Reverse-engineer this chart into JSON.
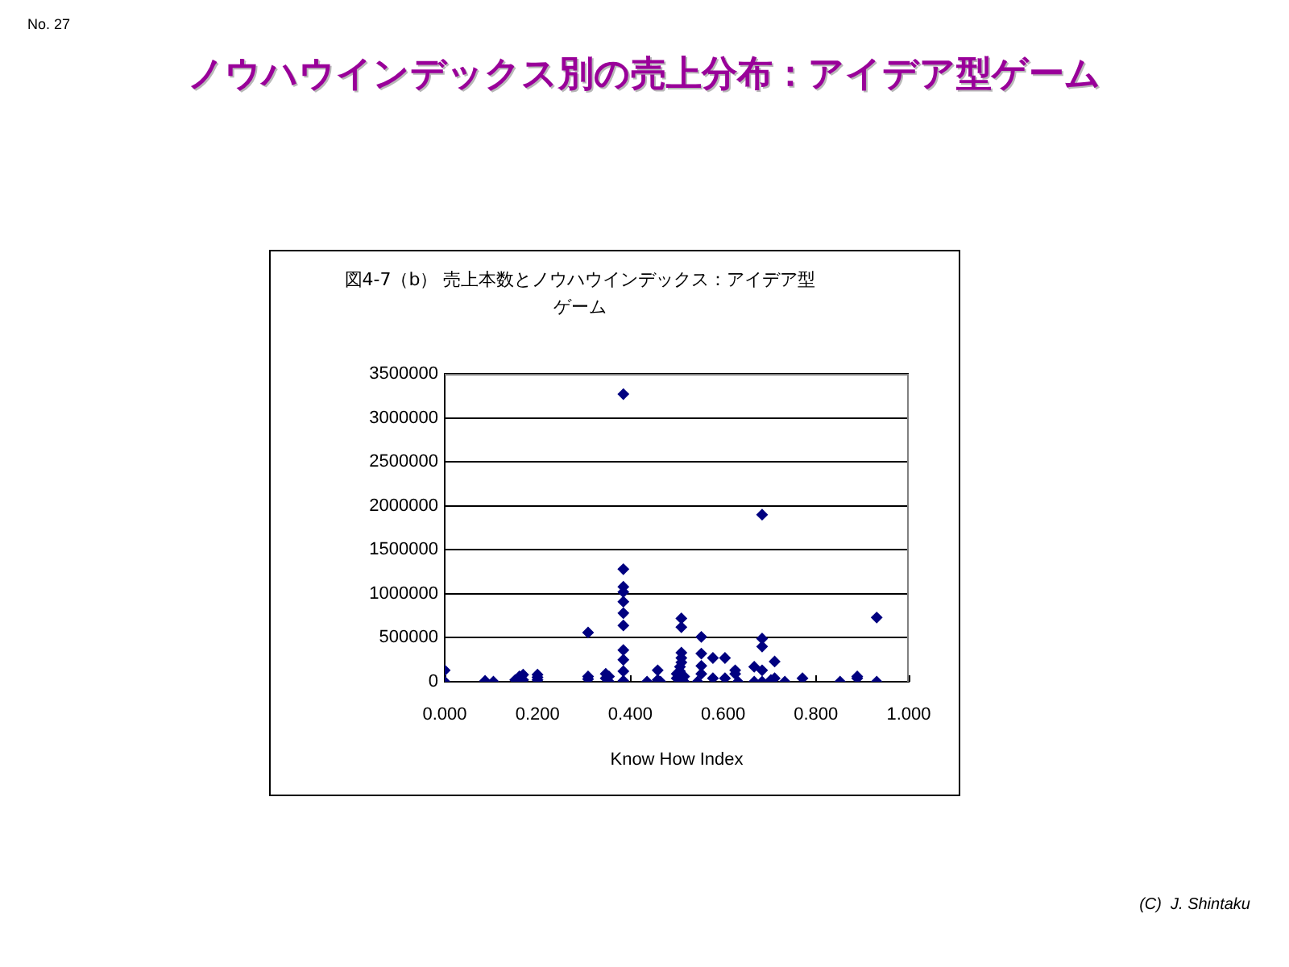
{
  "chart_data": {
    "type": "scatter",
    "title": "ノウハウインデックス別の売上分布：アイデア型ゲーム",
    "subtitle": "図4-7（b） 売上本数とノウハウインデックス：アイデア型ゲーム",
    "xlabel": "Know How Index",
    "annotations": [
      "No. 27",
      "(C)  J. Shintaku"
    ],
    "x": [
      0.0,
      0.0,
      0.087,
      0.105,
      0.152,
      0.161,
      0.169,
      0.169,
      0.2,
      0.2,
      0.2,
      0.309,
      0.309,
      0.309,
      0.347,
      0.347,
      0.354,
      0.354,
      0.385,
      0.385,
      0.385,
      0.385,
      0.385,
      0.385,
      0.385,
      0.385,
      0.385,
      0.385,
      0.385,
      0.436,
      0.459,
      0.459,
      0.465,
      0.51,
      0.51,
      0.51,
      0.51,
      0.51,
      0.507,
      0.507,
      0.5,
      0.5,
      0.516,
      0.516,
      0.553,
      0.553,
      0.553,
      0.553,
      0.545,
      0.578,
      0.578,
      0.604,
      0.604,
      0.626,
      0.626,
      0.632,
      0.667,
      0.667,
      0.684,
      0.684,
      0.684,
      0.684,
      0.684,
      0.711,
      0.711,
      0.703,
      0.733,
      0.771,
      0.852,
      0.889,
      0.889,
      0.931,
      0.931
    ],
    "values": [
      130000,
      0,
      10000,
      0,
      20000,
      60000,
      80000,
      20000,
      80000,
      50000,
      20000,
      560000,
      60000,
      30000,
      90000,
      40000,
      60000,
      0,
      3270000,
      1280000,
      1080000,
      1020000,
      910000,
      780000,
      640000,
      360000,
      250000,
      120000,
      10000,
      0,
      130000,
      20000,
      0,
      720000,
      620000,
      330000,
      270000,
      220000,
      170000,
      120000,
      90000,
      40000,
      0,
      60000,
      510000,
      320000,
      180000,
      90000,
      0,
      270000,
      40000,
      270000,
      40000,
      130000,
      90000,
      0,
      170000,
      0,
      1900000,
      490000,
      400000,
      130000,
      0,
      230000,
      40000,
      20000,
      0,
      40000,
      0,
      60000,
      40000,
      730000,
      0
    ],
    "color": "#000080",
    "marker": "diamond",
    "grid": "y",
    "legend": false,
    "xlim": [
      0,
      1
    ],
    "xticks": [
      {
        "value": 0,
        "label": "0.000"
      },
      {
        "value": 0.2,
        "label": "0.200"
      },
      {
        "value": 0.4,
        "label": "0.400"
      },
      {
        "value": 0.6,
        "label": "0.600"
      },
      {
        "value": 0.8,
        "label": "0.800"
      },
      {
        "value": 1,
        "label": "1.000"
      }
    ],
    "ylim": [
      0,
      3500000
    ],
    "yticks": [
      0,
      500000,
      1000000,
      1500000,
      2000000,
      2500000,
      3000000,
      3500000
    ]
  }
}
